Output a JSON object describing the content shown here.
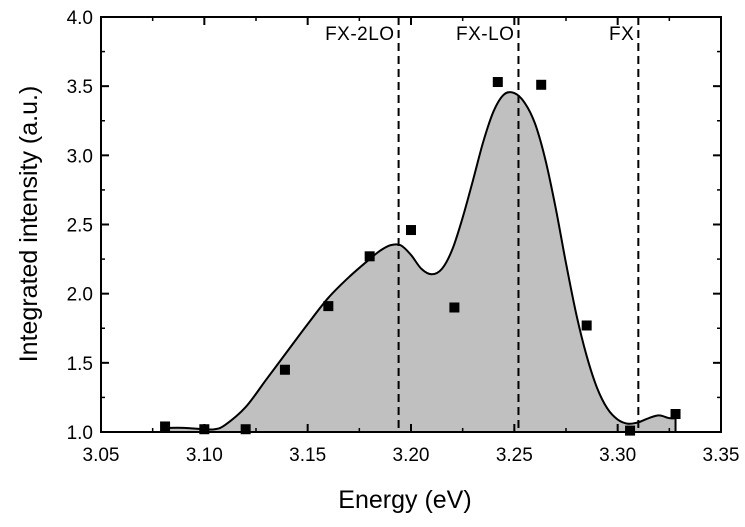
{
  "chart_data": {
    "type": "area",
    "xlabel": "Energy (eV)",
    "ylabel": "Integrated intensity (a.u.)",
    "xlim": [
      3.05,
      3.35
    ],
    "ylim": [
      1.0,
      4.0
    ],
    "x_ticks": [
      "3.05",
      "3.10",
      "3.15",
      "3.20",
      "3.25",
      "3.30",
      "3.35"
    ],
    "y_ticks": [
      "1.0",
      "1.5",
      "2.0",
      "2.5",
      "3.0",
      "3.5",
      "4.0"
    ],
    "colors": {
      "fill": "#c0c0c0",
      "line": "#000000",
      "marker": "#000000"
    },
    "series": [
      {
        "type": "scatter",
        "marker": "square",
        "x": [
          3.081,
          3.1,
          3.12,
          3.139,
          3.16,
          3.18,
          3.2,
          3.221,
          3.242,
          3.263,
          3.285,
          3.306,
          3.328
        ],
        "y": [
          1.04,
          1.02,
          1.02,
          1.45,
          1.91,
          2.27,
          2.46,
          1.9,
          3.53,
          3.51,
          1.77,
          1.01,
          1.13
        ]
      },
      {
        "type": "area",
        "x": [
          3.082,
          3.09,
          3.1,
          3.105,
          3.11,
          3.12,
          3.13,
          3.14,
          3.15,
          3.16,
          3.17,
          3.18,
          3.185,
          3.19,
          3.195,
          3.2,
          3.205,
          3.21,
          3.215,
          3.22,
          3.225,
          3.23,
          3.235,
          3.24,
          3.245,
          3.25,
          3.255,
          3.26,
          3.265,
          3.27,
          3.275,
          3.28,
          3.285,
          3.29,
          3.295,
          3.3,
          3.305,
          3.31,
          3.315,
          3.32,
          3.325,
          3.328
        ],
        "y": [
          1.03,
          1.03,
          1.02,
          1.02,
          1.05,
          1.18,
          1.38,
          1.58,
          1.78,
          1.97,
          2.12,
          2.25,
          2.31,
          2.35,
          2.35,
          2.28,
          2.18,
          2.14,
          2.18,
          2.32,
          2.55,
          2.82,
          3.1,
          3.32,
          3.44,
          3.45,
          3.38,
          3.23,
          2.97,
          2.62,
          2.22,
          1.85,
          1.55,
          1.32,
          1.17,
          1.09,
          1.06,
          1.07,
          1.1,
          1.12,
          1.1,
          1.1
        ]
      }
    ],
    "annotations": [
      {
        "text": "FX-2LO",
        "x": 3.194
      },
      {
        "text": "FX-LO",
        "x": 3.252
      },
      {
        "text": "FX",
        "x": 3.31
      }
    ]
  }
}
